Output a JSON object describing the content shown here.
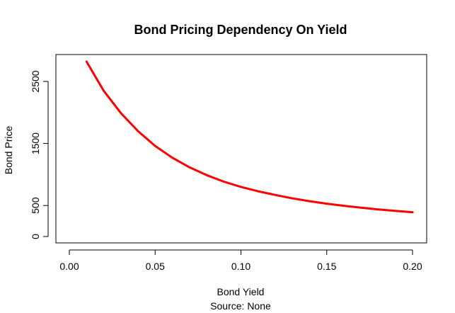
{
  "chart_data": {
    "type": "line",
    "title": "Bond Pricing Dependency On Yield",
    "xlabel": "Bond Yield",
    "caption": "Source: None",
    "ylabel": "Bond Price",
    "xlim": [
      0.0,
      0.2
    ],
    "ylim": [
      0,
      2800
    ],
    "x_ticks": [
      0.0,
      0.05,
      0.1,
      0.15,
      0.2
    ],
    "x_tick_labels": [
      "0.00",
      "0.05",
      "0.10",
      "0.15",
      "0.20"
    ],
    "y_ticks": [
      0,
      500,
      1500,
      2500
    ],
    "y_tick_labels": [
      "0",
      "500",
      "1500",
      "2500"
    ],
    "grid": false,
    "series": [
      {
        "color": "#ff0000",
        "x": [
          0.01,
          0.02,
          0.03,
          0.04,
          0.05,
          0.06,
          0.07,
          0.08,
          0.09,
          0.1,
          0.11,
          0.12,
          0.13,
          0.14,
          0.15,
          0.16,
          0.17,
          0.18,
          0.19,
          0.2
        ],
        "y": [
          2820,
          2350,
          1990,
          1700,
          1460,
          1270,
          1115,
          990,
          885,
          800,
          730,
          670,
          615,
          570,
          530,
          495,
          465,
          437,
          413,
          390
        ]
      }
    ]
  }
}
